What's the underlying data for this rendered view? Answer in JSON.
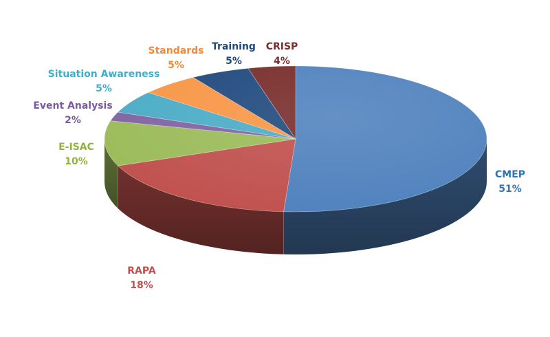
{
  "chart_data": {
    "type": "pie",
    "style": "3d",
    "slices": [
      {
        "label": "CMEP",
        "value": 51,
        "value_label": "51%",
        "color": "#4F81BD",
        "label_color": "#2E75B6"
      },
      {
        "label": "RAPA",
        "value": 18,
        "value_label": "18%",
        "color": "#C0504D",
        "label_color": "#C0504D"
      },
      {
        "label": "E-ISAC",
        "value": 10,
        "value_label": "10%",
        "color": "#9BBB59",
        "label_color": "#8FB33C"
      },
      {
        "label": "Event Analysis",
        "value": 2,
        "value_label": "2%",
        "color": "#8064A2",
        "label_color": "#7A5A9E"
      },
      {
        "label": "Situation Awareness",
        "value": 5,
        "value_label": "5%",
        "color": "#4BACC6",
        "label_color": "#3FAFC9"
      },
      {
        "label": "Standards",
        "value": 5,
        "value_label": "5%",
        "color": "#F79646",
        "label_color": "#F08A3A"
      },
      {
        "label": "Training",
        "value": 5,
        "value_label": "5%",
        "color": "#1F497D",
        "label_color": "#1F497D"
      },
      {
        "label": "CRISP",
        "value": 4,
        "value_label": "4%",
        "color": "#772C2A",
        "label_color": "#7B2C2C"
      }
    ],
    "title": "",
    "legend": "none"
  }
}
